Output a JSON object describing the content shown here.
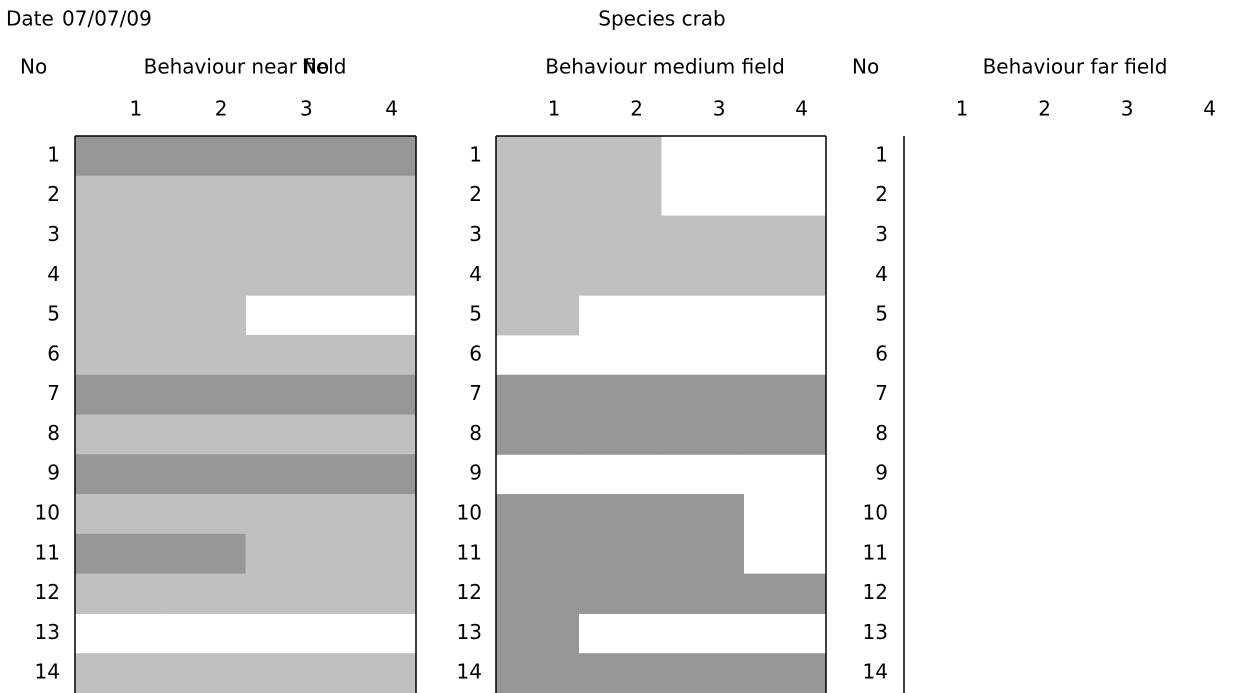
{
  "header": {
    "date_label": "Date",
    "date": "07/07/09",
    "species": "Species crab"
  },
  "panels": [
    {
      "no_label": "No",
      "title": "Behaviour near field",
      "columns": [
        "1",
        "2",
        "3",
        "4"
      ],
      "rows": [
        {
          "no": "1",
          "cells": [
            "#969696",
            "#969696",
            "#969696",
            "#969696"
          ]
        },
        {
          "no": "2",
          "cells": [
            "#c0c0c0",
            "#c0c0c0",
            "#c0c0c0",
            "#c0c0c0"
          ]
        },
        {
          "no": "3",
          "cells": [
            "#c0c0c0",
            "#c0c0c0",
            "#c0c0c0",
            "#c0c0c0"
          ]
        },
        {
          "no": "4",
          "cells": [
            "#c0c0c0",
            "#c0c0c0",
            "#c0c0c0",
            "#c0c0c0"
          ]
        },
        {
          "no": "5",
          "cells": [
            "#c0c0c0",
            "#c0c0c0",
            null,
            null
          ]
        },
        {
          "no": "6",
          "cells": [
            "#c0c0c0",
            "#c0c0c0",
            "#c0c0c0",
            "#c0c0c0"
          ]
        },
        {
          "no": "7",
          "cells": [
            "#969696",
            "#969696",
            "#969696",
            "#969696"
          ]
        },
        {
          "no": "8",
          "cells": [
            "#c0c0c0",
            "#c0c0c0",
            "#c0c0c0",
            "#c0c0c0"
          ]
        },
        {
          "no": "9",
          "cells": [
            "#969696",
            "#969696",
            "#969696",
            "#969696"
          ]
        },
        {
          "no": "10",
          "cells": [
            "#c0c0c0",
            "#c0c0c0",
            "#c0c0c0",
            "#c0c0c0"
          ]
        },
        {
          "no": "11",
          "cells": [
            "#969696",
            "#969696",
            "#c0c0c0",
            "#c0c0c0"
          ]
        },
        {
          "no": "12",
          "cells": [
            "#c0c0c0",
            "#c0c0c0",
            "#c0c0c0",
            "#c0c0c0"
          ]
        },
        {
          "no": "13",
          "cells": [
            null,
            null,
            null,
            null
          ]
        },
        {
          "no": "14",
          "cells": [
            "#c0c0c0",
            "#c0c0c0",
            "#c0c0c0",
            "#c0c0c0"
          ]
        }
      ]
    },
    {
      "no_label": "No",
      "title": "Behaviour medium field",
      "columns": [
        "1",
        "2",
        "3",
        "4"
      ],
      "rows": [
        {
          "no": "1",
          "cells": [
            "#c0c0c0",
            "#c0c0c0",
            null,
            null
          ]
        },
        {
          "no": "2",
          "cells": [
            "#c0c0c0",
            "#c0c0c0",
            null,
            null
          ]
        },
        {
          "no": "3",
          "cells": [
            "#c0c0c0",
            "#c0c0c0",
            "#c0c0c0",
            "#c0c0c0"
          ]
        },
        {
          "no": "4",
          "cells": [
            "#c0c0c0",
            "#c0c0c0",
            "#c0c0c0",
            "#c0c0c0"
          ]
        },
        {
          "no": "5",
          "cells": [
            "#c0c0c0",
            null,
            null,
            null
          ]
        },
        {
          "no": "6",
          "cells": [
            null,
            null,
            null,
            null
          ]
        },
        {
          "no": "7",
          "cells": [
            "#969696",
            "#969696",
            "#969696",
            "#969696"
          ]
        },
        {
          "no": "8",
          "cells": [
            "#969696",
            "#969696",
            "#969696",
            "#969696"
          ]
        },
        {
          "no": "9",
          "cells": [
            null,
            null,
            null,
            null
          ]
        },
        {
          "no": "10",
          "cells": [
            "#969696",
            "#969696",
            "#969696",
            null
          ]
        },
        {
          "no": "11",
          "cells": [
            "#969696",
            "#969696",
            "#969696",
            null
          ]
        },
        {
          "no": "12",
          "cells": [
            "#969696",
            "#969696",
            "#969696",
            "#969696"
          ]
        },
        {
          "no": "13",
          "cells": [
            "#969696",
            null,
            null,
            null
          ]
        },
        {
          "no": "14",
          "cells": [
            "#969696",
            "#969696",
            "#969696",
            "#969696"
          ]
        }
      ]
    },
    {
      "no_label": "No",
      "title": "Behaviour far field",
      "columns": [
        "1",
        "2",
        "3",
        "4"
      ],
      "rows": [
        {
          "no": "1",
          "cells": [
            null,
            null,
            null,
            null
          ]
        },
        {
          "no": "2",
          "cells": [
            null,
            null,
            null,
            null
          ]
        },
        {
          "no": "3",
          "cells": [
            null,
            null,
            null,
            null
          ]
        },
        {
          "no": "4",
          "cells": [
            null,
            null,
            null,
            null
          ]
        },
        {
          "no": "5",
          "cells": [
            null,
            null,
            null,
            null
          ]
        },
        {
          "no": "6",
          "cells": [
            null,
            null,
            null,
            null
          ]
        },
        {
          "no": "7",
          "cells": [
            null,
            null,
            null,
            null
          ]
        },
        {
          "no": "8",
          "cells": [
            null,
            null,
            null,
            null
          ]
        },
        {
          "no": "9",
          "cells": [
            null,
            null,
            null,
            null
          ]
        },
        {
          "no": "10",
          "cells": [
            null,
            null,
            null,
            null
          ]
        },
        {
          "no": "11",
          "cells": [
            null,
            null,
            null,
            null
          ]
        },
        {
          "no": "12",
          "cells": [
            null,
            null,
            null,
            null
          ]
        },
        {
          "no": "13",
          "cells": [
            null,
            null,
            null,
            null
          ]
        },
        {
          "no": "14",
          "cells": [
            null,
            null,
            null,
            null
          ]
        }
      ]
    }
  ]
}
